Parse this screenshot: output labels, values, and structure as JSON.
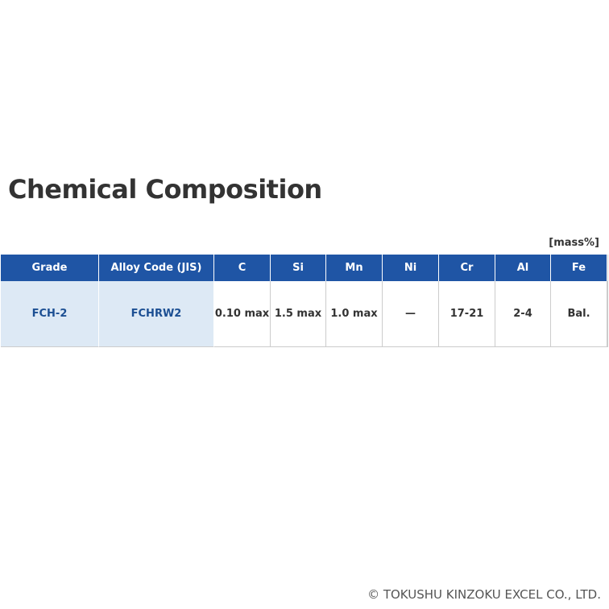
{
  "title": "Chemical Composition",
  "unit": "[mass%]",
  "table": {
    "headers": [
      "Grade",
      "Alloy Code (JIS)",
      "C",
      "Si",
      "Mn",
      "Ni",
      "Cr",
      "Al",
      "Fe"
    ],
    "rows": [
      [
        "FCH-2",
        "FCHRW2",
        "0.10 max",
        "1.5 max",
        "1.0 max",
        "—",
        "17-21",
        "2-4",
        "Bal."
      ]
    ]
  },
  "footer": "© TOKUSHU KINZOKU EXCEL CO., LTD."
}
